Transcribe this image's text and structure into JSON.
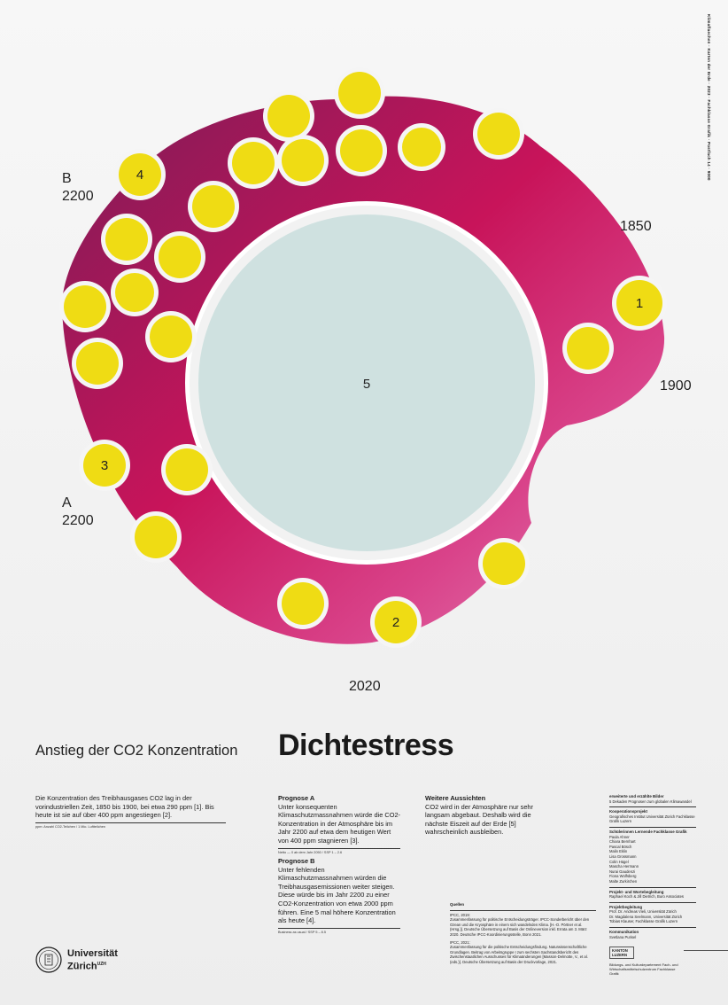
{
  "timeline_labels": {
    "y1850": "1850",
    "y1900": "1900",
    "y2020": "2020",
    "a_label": "A",
    "a_year": "2200",
    "b_label": "B",
    "b_year": "2200"
  },
  "center_label": "5",
  "marker_labels": {
    "m1": "1",
    "m2": "2",
    "m3": "3",
    "m4": "4"
  },
  "colors": {
    "ring_start": "#9c1b5a",
    "ring_mid": "#cf0f5a",
    "ring_end": "#dd5597",
    "dot": "#efdc14",
    "center": "#cfe1e0",
    "halo": "#ffffff"
  },
  "subtitle": "Anstieg der CO2 Konzentration",
  "title": "Dichtestress",
  "intro": {
    "text": "Die Konzentration des Treibhausgases CO2 lag in der vorindustriellen Zeit, 1850 bis 1900, bei etwa 290 ppm [1]. Bis heute ist sie auf über 400 ppm angestiegen [2].",
    "footnote": "ppm: Anzahl CO2-Teilchen / 1 Mio. Luftteilchen"
  },
  "prognose_a": {
    "heading": "Prognose A",
    "text": "Unter konsequenten Klimaschutzmassnahmen würde die CO2-Konzentration in der Atmosphäre bis im Jahr 2200 auf etwa dem heutigen Wert von 400 ppm stagnieren [3].",
    "footnote": "Netto — 0 ab dem Jahr 2050 / SSP 1 – 2.6"
  },
  "prognose_b": {
    "heading": "Prognose B",
    "text": "Unter fehlenden Klimaschutzmassnahmen würden die Treibhausgasemissionen weiter steigen. Diese würde bis im Jahr 2200 zu einer CO2-Konzentration von etwa 2000 ppm führen. Eine 5 mal höhere Konzentration als heute [4].",
    "footnote": "Business as usual / SSP 5 – 8.5"
  },
  "aussichten": {
    "heading": "Weitere Aussichten",
    "text": "CO2 wird in der Atmosphäre nur sehr langsam abgebaut. Deshalb wird die nächste Eiszeit auf der Erde [5] wahrscheinlich ausbleiben."
  },
  "quellen": {
    "heading": "Quellen",
    "line1": "IPCC, 2019:",
    "text1": "Zusammenfassung für politische Entscheidungsträger. IPCC-Sonderbericht über den Ozean und die Kryosphäre in einem sich wandelnden Klima. [H.-O. Pörtner et al. (Hrsg.)]. Deutsche Übersetzung auf Basis der Onlineversion inkl. Errata am 3. März 2020. Deutsche IPCC-Koordinierungsstelle, Bonn 2021.",
    "line2": "IPCC, 2021:",
    "text2": "Zusammenfassung für die politische Entscheidungsfindung. Naturwissenschaftliche Grundlagen. Beitrag von Arbeitsgruppe I zum sechsten Sachstandsbericht des Zwischenstaatlichen Ausschusses für Klimaänderungen [Masson-Delmotte, V., et al. (eds.)]. Deutsche Übersetzung auf Basis der Druckvorlage, 2021."
  },
  "credits": {
    "c1_title": "erweiterte und erzählte Bilder",
    "c1_text": "5 Dekaden Prognosen zum globalen Klimawandel",
    "c2_title": "Kooperationsprojekt",
    "c2_text": "Geografisches Institut Universität Zürich Fachklasse Grafik Luzern",
    "c3_title": "Schülerinnen Lernende Fachklasse Grafik",
    "names": [
      "Paula Ahner",
      "Chiara Bernhart",
      "Pascal Bösch",
      "Malin Eklin",
      "Lisa Grossmann",
      "Colin Hügel",
      "Mascha Hermann",
      "Nurai Gaudenzi",
      "Fiona Wolfsberg",
      "Malte Zurkirchen"
    ],
    "c4_title": "Projekt- und Wortebegleitung",
    "c4_text": "Raphael Koch & Jill Dietrich, Buro Associates",
    "c5_title": "Projektbegleitung",
    "c5_lines": [
      "Prof. Dr. Andreas Vieli, Universität Zürich",
      "Dr. Magdalena Seelmann, Universität Zürich",
      "Tobias Klauser, Fachklasse Grafik Luzern"
    ],
    "c6_title": "Kommunikation",
    "c6_text": "Svetlana Purisel"
  },
  "vertical_text": "Klimaflaechen · Karten der Erde · 2023 · Fachklasse Grafik · Postfach 14 · 9000",
  "logo": {
    "name": "Universität",
    "name2": "Zürich",
    "sup": "UZH"
  },
  "kanton": {
    "label": "KANTON LUZERN",
    "text": "Bildungs- und Kulturdepartement Fach- und Wirtschaftsmittelschulzentrum Fachklasse Grafik"
  }
}
